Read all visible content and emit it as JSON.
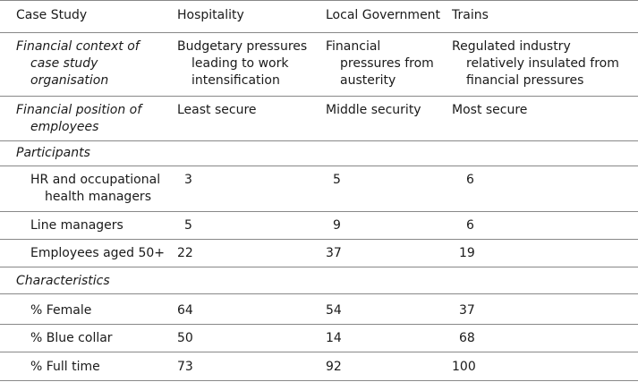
{
  "table": {
    "headers": {
      "case_study": "Case Study",
      "hospitality": "Hospitality",
      "local_government": "Local Government",
      "trains": "Trains"
    },
    "financial_context": {
      "label_line1": "Financial context of",
      "label_line2": "case study",
      "label_line3": "organisation",
      "hospitality_line1": "Budgetary pressures",
      "hospitality_line2": "leading to work",
      "hospitality_line3": "intensification",
      "local_government_line1": "Financial",
      "local_government_line2": "pressures from",
      "local_government_line3": "austerity",
      "trains_line1": "Regulated industry",
      "trains_line2": "relatively insulated from",
      "trains_line3": "financial pressures"
    },
    "financial_position": {
      "label_line1": "Financial position of",
      "label_line2": "employees",
      "hospitality": "Least secure",
      "local_government": "Middle security",
      "trains": "Most secure"
    },
    "participants": {
      "label": "Participants",
      "hr_label_line1": "HR and occupational",
      "hr_label_line2": "health managers",
      "hr_values": [
        "3",
        "5",
        "6"
      ],
      "line_managers_label": "Line managers",
      "line_managers_values": [
        "5",
        "9",
        "6"
      ],
      "employees_label": "Employees aged 50+",
      "employees_values": [
        "22",
        "37",
        "19"
      ]
    },
    "characteristics": {
      "label": "Characteristics",
      "female_label": "% Female",
      "female_values": [
        "64",
        "54",
        "37"
      ],
      "blue_collar_label": "% Blue collar",
      "blue_collar_values": [
        "50",
        "14",
        "68"
      ],
      "full_time_label": "% Full time",
      "full_time_values": [
        "73",
        "92",
        "100"
      ]
    }
  }
}
